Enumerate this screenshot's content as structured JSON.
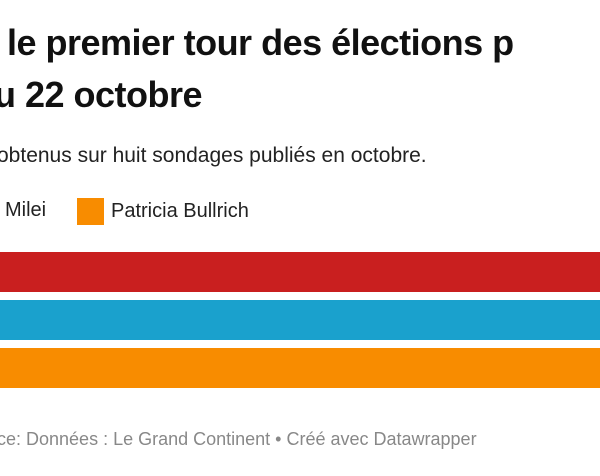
{
  "chart_data": {
    "type": "bar",
    "title": [
      "le premier tour des élections p",
      "u 22 octobre"
    ],
    "subtitle": "obtenus sur huit sondages publiés en octobre.",
    "legend": [
      {
        "name": "Milei",
        "color": "#c91f1f"
      },
      {
        "name": "Patricia Bullrich",
        "color": "#f88c00"
      }
    ],
    "bars": [
      {
        "color": "#c91f1f"
      },
      {
        "color": "#1aa1cd"
      },
      {
        "color": "#f88c00"
      }
    ],
    "footer": "ce: Données : Le Grand Continent • Créé avec Datawrapper"
  }
}
